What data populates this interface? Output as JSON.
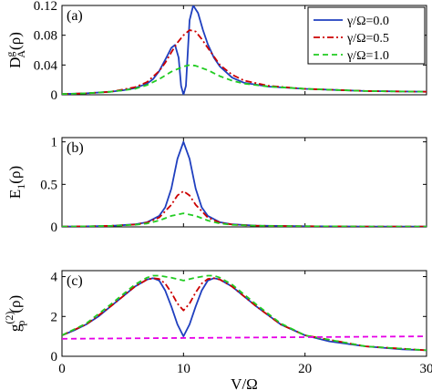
{
  "chart_data": [
    {
      "type": "line",
      "panel_label": "(a)",
      "ylabel": "D_A^g(ρ)",
      "xlim": [
        0,
        30
      ],
      "ylim": [
        0,
        0.12
      ],
      "yticks": [
        0,
        0.04,
        0.08,
        0.12
      ],
      "ytick_labels": [
        "0",
        "0.04",
        "0.08",
        "0.12"
      ],
      "legend": {
        "position": "top-right",
        "entries": [
          "γ/Ω=0.0",
          "γ/Ω=0.5",
          "γ/Ω=1.0"
        ]
      },
      "series": [
        {
          "name": "γ/Ω=0.0",
          "color": "#1f3fbf",
          "dash": "solid",
          "x": [
            0,
            2,
            4,
            5,
            6,
            7,
            7.5,
            8,
            8.5,
            9,
            9.3,
            9.6,
            9.8,
            10,
            10.2,
            10.5,
            10.8,
            11.2,
            11.6,
            12,
            12.5,
            13,
            14,
            15,
            17,
            20,
            25,
            30
          ],
          "y": [
            0.001,
            0.002,
            0.004,
            0.006,
            0.009,
            0.015,
            0.021,
            0.032,
            0.047,
            0.063,
            0.067,
            0.05,
            0.012,
            0.0,
            0.012,
            0.1,
            0.12,
            0.11,
            0.087,
            0.068,
            0.05,
            0.038,
            0.023,
            0.016,
            0.011,
            0.008,
            0.005,
            0.004
          ]
        },
        {
          "name": "γ/Ω=0.5",
          "color": "#cc0000",
          "dash": "dashdot",
          "x": [
            0,
            2,
            4,
            6,
            7,
            8,
            8.5,
            9,
            9.5,
            10,
            10.5,
            11,
            11.5,
            12,
            13,
            14,
            15,
            17,
            20,
            25,
            30
          ],
          "y": [
            0.001,
            0.002,
            0.004,
            0.01,
            0.017,
            0.032,
            0.043,
            0.057,
            0.07,
            0.08,
            0.087,
            0.085,
            0.075,
            0.063,
            0.04,
            0.027,
            0.019,
            0.012,
            0.008,
            0.005,
            0.004
          ]
        },
        {
          "name": "γ/Ω=1.0",
          "color": "#22cc22",
          "dash": "dash",
          "x": [
            0,
            2,
            4,
            6,
            7,
            8,
            9,
            10,
            10.5,
            11,
            12,
            13,
            14,
            15,
            17,
            20,
            25,
            30
          ],
          "y": [
            0.001,
            0.002,
            0.004,
            0.008,
            0.013,
            0.021,
            0.031,
            0.038,
            0.04,
            0.039,
            0.033,
            0.025,
            0.019,
            0.015,
            0.011,
            0.008,
            0.005,
            0.004
          ]
        }
      ]
    },
    {
      "type": "line",
      "panel_label": "(b)",
      "ylabel": "E_1(ρ)",
      "xlim": [
        0,
        30
      ],
      "ylim": [
        0,
        1.05
      ],
      "yticks": [
        0,
        0.5,
        1
      ],
      "ytick_labels": [
        "0",
        "0.5",
        "1"
      ],
      "series": [
        {
          "name": "γ/Ω=0.0",
          "color": "#1f3fbf",
          "dash": "solid",
          "x": [
            0,
            2,
            4,
            6,
            7,
            8,
            8.5,
            9,
            9.5,
            10,
            10.5,
            11,
            11.5,
            12,
            13,
            14,
            16,
            20,
            25,
            30
          ],
          "y": [
            0.003,
            0.006,
            0.012,
            0.03,
            0.055,
            0.13,
            0.23,
            0.45,
            0.8,
            1.0,
            0.8,
            0.45,
            0.23,
            0.13,
            0.055,
            0.03,
            0.015,
            0.007,
            0.004,
            0.003
          ]
        },
        {
          "name": "γ/Ω=0.5",
          "color": "#cc0000",
          "dash": "dashdot",
          "x": [
            0,
            2,
            4,
            6,
            7,
            8,
            9,
            9.5,
            10,
            10.5,
            11,
            12,
            13,
            14,
            16,
            20,
            25,
            30
          ],
          "y": [
            0.003,
            0.006,
            0.012,
            0.028,
            0.05,
            0.11,
            0.26,
            0.37,
            0.42,
            0.37,
            0.26,
            0.11,
            0.05,
            0.028,
            0.014,
            0.007,
            0.004,
            0.003
          ]
        },
        {
          "name": "γ/Ω=1.0",
          "color": "#22cc22",
          "dash": "dash",
          "x": [
            0,
            2,
            4,
            6,
            7,
            8,
            9,
            10,
            11,
            12,
            13,
            14,
            16,
            20,
            25,
            30
          ],
          "y": [
            0.003,
            0.006,
            0.012,
            0.025,
            0.04,
            0.075,
            0.13,
            0.16,
            0.13,
            0.075,
            0.04,
            0.025,
            0.013,
            0.007,
            0.004,
            0.003
          ]
        }
      ]
    },
    {
      "type": "line",
      "panel_label": "(c)",
      "ylabel": "g_p^(2)(ρ)",
      "xlabel": "V/Ω",
      "xlim": [
        0,
        30
      ],
      "ylim": [
        0,
        4.3
      ],
      "xticks": [
        0,
        10,
        20,
        30
      ],
      "xtick_labels": [
        "0",
        "10",
        "20",
        "30"
      ],
      "yticks": [
        0,
        2,
        4
      ],
      "ytick_labels": [
        "0",
        "2",
        "4"
      ],
      "series": [
        {
          "name": "γ/Ω=0.0",
          "color": "#1f3fbf",
          "dash": "solid",
          "x": [
            0,
            1,
            2,
            3,
            4,
            5,
            6,
            7,
            7.5,
            8,
            8.5,
            9,
            9.5,
            10,
            10.5,
            11,
            11.5,
            12,
            12.5,
            13,
            14,
            15,
            16,
            18,
            20,
            22,
            25,
            28,
            30
          ],
          "y": [
            1.05,
            1.3,
            1.6,
            2.0,
            2.5,
            3.0,
            3.5,
            3.85,
            3.92,
            3.8,
            3.3,
            2.5,
            1.6,
            1.0,
            1.6,
            2.5,
            3.3,
            3.8,
            3.92,
            3.85,
            3.5,
            3.0,
            2.5,
            1.6,
            1.05,
            0.75,
            0.5,
            0.35,
            0.3
          ]
        },
        {
          "name": "γ/Ω=0.5",
          "color": "#cc0000",
          "dash": "dashdot",
          "x": [
            0,
            2,
            4,
            6,
            7,
            7.5,
            8,
            8.5,
            9,
            9.5,
            10,
            10.5,
            11,
            11.5,
            12,
            12.5,
            13,
            14,
            16,
            18,
            20,
            25,
            30
          ],
          "y": [
            1.05,
            1.6,
            2.5,
            3.5,
            3.85,
            3.92,
            3.88,
            3.65,
            3.2,
            2.65,
            2.3,
            2.65,
            3.2,
            3.65,
            3.88,
            3.92,
            3.85,
            3.5,
            2.5,
            1.6,
            1.05,
            0.5,
            0.3
          ]
        },
        {
          "name": "γ/Ω=1.0",
          "color": "#22cc22",
          "dash": "dash",
          "x": [
            0,
            2,
            4,
            6,
            7,
            7.5,
            8,
            9,
            10,
            11,
            12,
            12.5,
            13,
            14,
            16,
            18,
            20,
            25,
            30
          ],
          "y": [
            1.05,
            1.65,
            2.6,
            3.6,
            3.95,
            4.05,
            4.05,
            3.95,
            3.8,
            3.95,
            4.05,
            4.05,
            3.95,
            3.6,
            2.6,
            1.65,
            1.05,
            0.5,
            0.3
          ]
        },
        {
          "name": "",
          "color": "#e600e6",
          "dash": "dash",
          "x": [
            0,
            30
          ],
          "y": [
            0.88,
            1.0
          ]
        }
      ]
    }
  ]
}
